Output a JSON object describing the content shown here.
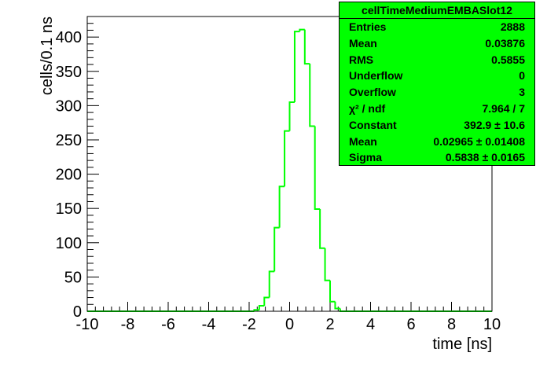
{
  "stats_box": {
    "title": "cellTimeMediumEMBASlot12",
    "rows": [
      {
        "label": "Entries",
        "value": "2888"
      },
      {
        "label": "Mean",
        "value": "0.03876"
      },
      {
        "label": "RMS",
        "value": "0.5855"
      },
      {
        "label": "Underflow",
        "value": "0"
      },
      {
        "label": "Overflow",
        "value": "3"
      },
      {
        "label": "χ² / ndf",
        "value": "7.964 / 7"
      },
      {
        "label": "Constant",
        "value": "392.9 ± 10.6"
      },
      {
        "label": "Mean",
        "value": "0.02965 ± 0.01408"
      },
      {
        "label": "Sigma",
        "value": "0.5838 ± 0.0165"
      }
    ]
  },
  "chart_data": {
    "type": "histogram",
    "xlabel": "time [ns]",
    "ylabel": "cells/0.1 ns",
    "xlim": [
      -10,
      10
    ],
    "ylim": [
      0,
      430
    ],
    "x_ticks": [
      -10,
      -8,
      -6,
      -4,
      -2,
      0,
      2,
      4,
      6,
      8,
      10
    ],
    "y_ticks": [
      0,
      50,
      100,
      150,
      200,
      250,
      300,
      350,
      400
    ],
    "line_color": "#00ff00",
    "bin_width": 0.25,
    "bins": [
      {
        "x0": -10.0,
        "x1": -1.75,
        "count": 0
      },
      {
        "x0": -1.75,
        "x1": -1.5,
        "count": 2
      },
      {
        "x0": -1.5,
        "x1": -1.25,
        "count": 8
      },
      {
        "x0": -1.25,
        "x1": -1.0,
        "count": 20
      },
      {
        "x0": -1.0,
        "x1": -0.75,
        "count": 58
      },
      {
        "x0": -0.75,
        "x1": -0.5,
        "count": 122
      },
      {
        "x0": -0.5,
        "x1": -0.25,
        "count": 182
      },
      {
        "x0": -0.25,
        "x1": 0.0,
        "count": 263
      },
      {
        "x0": 0.0,
        "x1": 0.25,
        "count": 305
      },
      {
        "x0": 0.25,
        "x1": 0.5,
        "count": 408
      },
      {
        "x0": 0.5,
        "x1": 0.75,
        "count": 411
      },
      {
        "x0": 0.75,
        "x1": 1.0,
        "count": 361
      },
      {
        "x0": 1.0,
        "x1": 1.25,
        "count": 270
      },
      {
        "x0": 1.25,
        "x1": 1.5,
        "count": 149
      },
      {
        "x0": 1.5,
        "x1": 1.75,
        "count": 92
      },
      {
        "x0": 1.75,
        "x1": 2.0,
        "count": 45
      },
      {
        "x0": 2.0,
        "x1": 2.25,
        "count": 14
      },
      {
        "x0": 2.25,
        "x1": 2.5,
        "count": 4
      },
      {
        "x0": 2.5,
        "x1": 10.0,
        "count": 0
      }
    ]
  }
}
